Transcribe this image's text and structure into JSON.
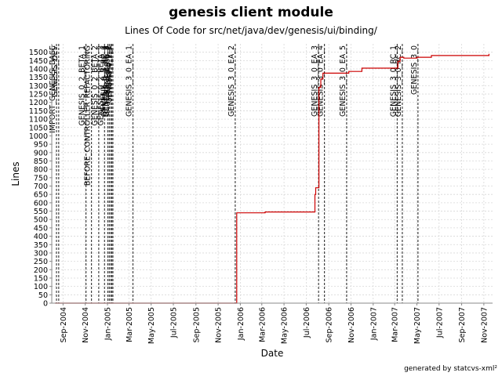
{
  "chart_data": {
    "type": "line",
    "title": "genesis client module",
    "subtitle": "Lines Of Code for src/net/java/dev/genesis/ui/binding/",
    "xlabel": "Date",
    "ylabel": "Lines",
    "credit": "generated by statcvs-xml²",
    "xlim": [
      "2004-08-01",
      "2007-11-25"
    ],
    "ylim": [
      0,
      1550
    ],
    "y_ticks": [
      0,
      50,
      100,
      150,
      200,
      250,
      300,
      350,
      400,
      450,
      500,
      550,
      600,
      650,
      700,
      750,
      800,
      850,
      900,
      950,
      1000,
      1050,
      1100,
      1150,
      1200,
      1250,
      1300,
      1350,
      1400,
      1450,
      1500
    ],
    "x_ticks": [
      {
        "date": "2004-09-01",
        "label": "Sep-2004"
      },
      {
        "date": "2004-11-01",
        "label": "Nov-2004"
      },
      {
        "date": "2005-01-01",
        "label": "Jan-2005"
      },
      {
        "date": "2005-03-01",
        "label": "Mar-2005"
      },
      {
        "date": "2005-05-01",
        "label": "May-2005"
      },
      {
        "date": "2005-07-01",
        "label": "Jul-2005"
      },
      {
        "date": "2005-09-01",
        "label": "Sep-2005"
      },
      {
        "date": "2005-11-01",
        "label": "Nov-2005"
      },
      {
        "date": "2006-01-01",
        "label": "Jan-2006"
      },
      {
        "date": "2006-03-01",
        "label": "Mar-2006"
      },
      {
        "date": "2006-05-01",
        "label": "May-2006"
      },
      {
        "date": "2006-07-01",
        "label": "Jul-2006"
      },
      {
        "date": "2006-09-01",
        "label": "Sep-2006"
      },
      {
        "date": "2006-11-01",
        "label": "Nov-2006"
      },
      {
        "date": "2007-01-01",
        "label": "Jan-2007"
      },
      {
        "date": "2007-03-01",
        "label": "Mar-2007"
      },
      {
        "date": "2007-05-01",
        "label": "May-2007"
      },
      {
        "date": "2007-07-01",
        "label": "Jul-2007"
      },
      {
        "date": "2007-09-01",
        "label": "Sep-2007"
      },
      {
        "date": "2007-11-01",
        "label": "Nov-2007"
      }
    ],
    "grid": true,
    "line_color": "#cc0000",
    "series": [
      {
        "points": [
          {
            "x": "2004-08-10",
            "y": 0
          },
          {
            "x": "2005-12-22",
            "y": 0
          },
          {
            "x": "2005-12-22",
            "y": 540
          },
          {
            "x": "2006-03-10",
            "y": 540
          },
          {
            "x": "2006-03-10",
            "y": 545
          },
          {
            "x": "2006-07-25",
            "y": 545
          },
          {
            "x": "2006-07-25",
            "y": 650
          },
          {
            "x": "2006-07-27",
            "y": 650
          },
          {
            "x": "2006-07-27",
            "y": 690
          },
          {
            "x": "2006-08-05",
            "y": 690
          },
          {
            "x": "2006-08-05",
            "y": 1290
          },
          {
            "x": "2006-08-10",
            "y": 1290
          },
          {
            "x": "2006-08-10",
            "y": 1340
          },
          {
            "x": "2006-08-16",
            "y": 1340
          },
          {
            "x": "2006-08-16",
            "y": 1375
          },
          {
            "x": "2006-10-26",
            "y": 1375
          },
          {
            "x": "2006-10-26",
            "y": 1385
          },
          {
            "x": "2006-12-01",
            "y": 1385
          },
          {
            "x": "2006-12-01",
            "y": 1405
          },
          {
            "x": "2007-03-10",
            "y": 1405
          },
          {
            "x": "2007-03-10",
            "y": 1445
          },
          {
            "x": "2007-03-16",
            "y": 1445
          },
          {
            "x": "2007-03-16",
            "y": 1470
          },
          {
            "x": "2007-03-26",
            "y": 1470
          },
          {
            "x": "2007-03-26",
            "y": 1465
          },
          {
            "x": "2007-05-01",
            "y": 1465
          },
          {
            "x": "2007-05-01",
            "y": 1470
          },
          {
            "x": "2007-06-10",
            "y": 1470
          },
          {
            "x": "2007-06-10",
            "y": 1480
          },
          {
            "x": "2007-11-15",
            "y": 1480
          },
          {
            "x": "2007-11-15",
            "y": 1490
          }
        ]
      }
    ],
    "tags": [
      {
        "date": "2004-08-14",
        "label": "IMPORT_GENESIS_BASE"
      },
      {
        "date": "2004-08-20",
        "label": "GENESIS_DEV"
      },
      {
        "date": "2004-11-03",
        "label": "GENESIS_0_2_BETA_1"
      },
      {
        "date": "2004-11-18",
        "label": "BEFORE_CONTROLLER_REFACTORING"
      },
      {
        "date": "2004-12-08",
        "label": "GENESIS_0_2_BETA_2"
      },
      {
        "date": "2004-12-24",
        "label": "GENESIS_0_2_BETA_3"
      },
      {
        "date": "2005-01-02",
        "label": "GENESIS_0_2_RC_1"
      },
      {
        "date": "2005-01-06",
        "label": "GENESIS_0_2_RC_2"
      },
      {
        "date": "2005-01-10",
        "label": "GENESIS_0_2_RC_3"
      },
      {
        "date": "2005-01-13",
        "label": "GENESIS_0_2"
      },
      {
        "date": "2005-01-16",
        "label": "GENESIS_0_2_1"
      },
      {
        "date": "2005-03-12",
        "label": "GENESIS_3_0_EA_1"
      },
      {
        "date": "2005-12-18",
        "label": "GENESIS_3_0_EA_2"
      },
      {
        "date": "2006-08-04",
        "label": "GENESIS_3_0_EA_3"
      },
      {
        "date": "2006-08-20",
        "label": "GENESIS_3_0_EA_4"
      },
      {
        "date": "2006-10-20",
        "label": "GENESIS_3_0_EA_5"
      },
      {
        "date": "2007-03-08",
        "label": "GENESIS_3_0_RC_1"
      },
      {
        "date": "2007-03-22",
        "label": "GENESIS_3_0_RC_2"
      },
      {
        "date": "2007-05-04",
        "label": "GENESIS_3_0"
      }
    ]
  }
}
